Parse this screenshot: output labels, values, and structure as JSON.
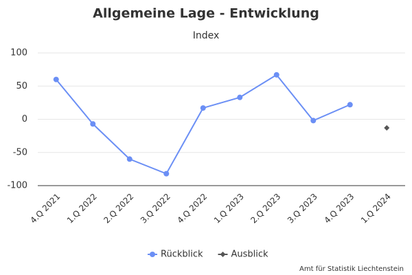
{
  "chart_data": {
    "type": "line",
    "title": "Allgemeine Lage - Entwicklung",
    "y_label": "Index",
    "categories": [
      "4.Q 2021",
      "1.Q 2022",
      "2.Q 2022",
      "3.Q 2022",
      "4.Q 2022",
      "1.Q 2023",
      "2.Q 2023",
      "3.Q 2023",
      "4.Q 2023",
      "1.Q 2024"
    ],
    "series": [
      {
        "name": "Rückblick",
        "color": "#6b8ff5",
        "marker": "circle",
        "values": [
          60,
          -7,
          -60,
          -82,
          17,
          33,
          67,
          -2,
          22,
          null
        ]
      },
      {
        "name": "Ausblick",
        "color": "#555555",
        "marker": "diamond",
        "values": [
          null,
          null,
          null,
          null,
          null,
          null,
          null,
          null,
          null,
          -13
        ]
      }
    ],
    "ylim": [
      -100,
      100
    ],
    "yticks": [
      -100,
      -50,
      0,
      50,
      100
    ],
    "grid": true,
    "credits": "Amt für Statistik Liechtenstein"
  }
}
